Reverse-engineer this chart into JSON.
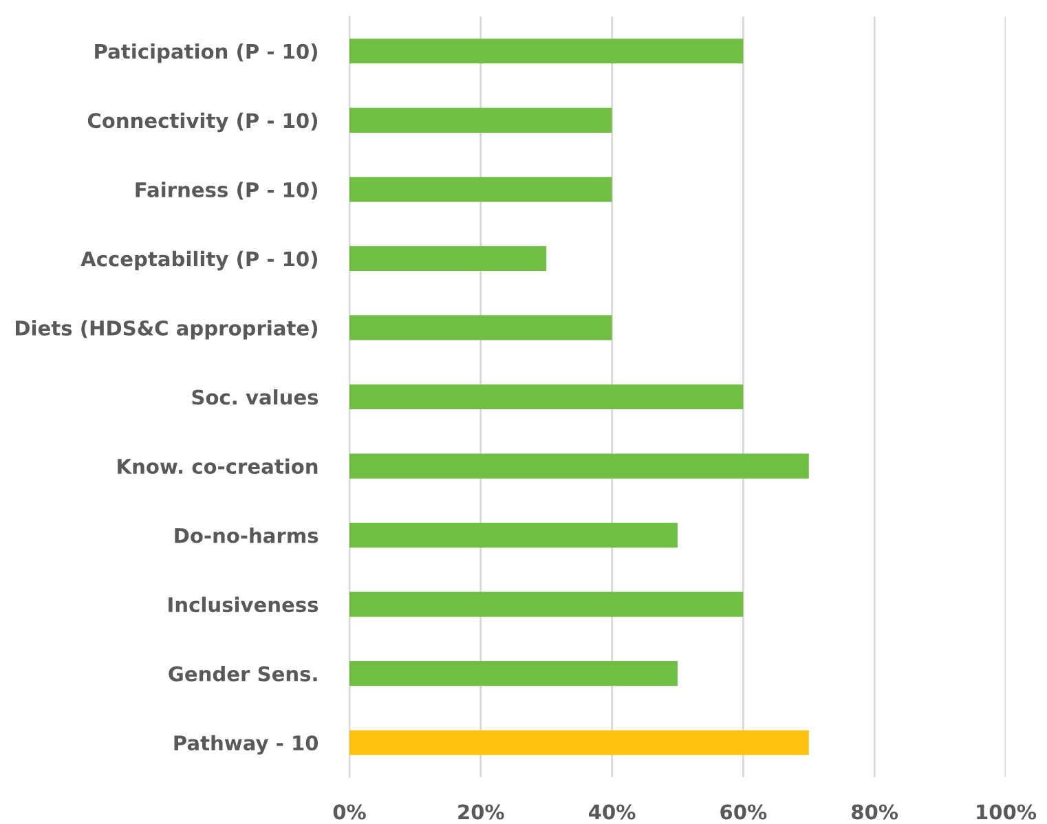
{
  "chart_data": {
    "type": "bar",
    "orientation": "horizontal",
    "categories": [
      "Paticipation (P - 10)",
      "Connectivity (P - 10)",
      "Fairness (P - 10)",
      "Acceptability (P - 10)",
      "Diets (HDS&C appropriate)",
      "Soc. values",
      "Know. co-creation",
      "Do-no-harms",
      "Inclusiveness",
      "Gender Sens.",
      "Pathway - 10"
    ],
    "values": [
      60,
      40,
      40,
      30,
      40,
      60,
      70,
      50,
      60,
      50,
      70
    ],
    "colors": [
      "#70bf44",
      "#70bf44",
      "#70bf44",
      "#70bf44",
      "#70bf44",
      "#70bf44",
      "#70bf44",
      "#70bf44",
      "#70bf44",
      "#70bf44",
      "#ffc20e"
    ],
    "xlim": [
      0,
      100
    ],
    "xticks": [
      {
        "value": 0,
        "label": "0%"
      },
      {
        "value": 20,
        "label": "20%"
      },
      {
        "value": 40,
        "label": "40%"
      },
      {
        "value": 60,
        "label": "60%"
      },
      {
        "value": 80,
        "label": "80%"
      },
      {
        "value": 100,
        "label": "100%"
      }
    ],
    "grid": "x"
  }
}
